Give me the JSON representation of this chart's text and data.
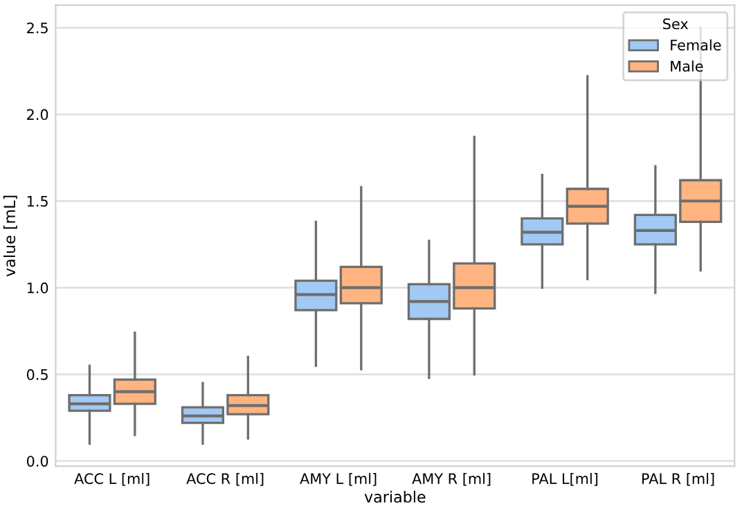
{
  "chart_data": {
    "type": "box",
    "xlabel": "variable",
    "ylabel": "value [mL]",
    "legend_title": "Sex",
    "categories": [
      "ACC L [ml]",
      "ACC R [ml]",
      "AMY L [ml]",
      "AMY R [ml]",
      "PAL L[ml]",
      "PAL R [ml]"
    ],
    "series": [
      {
        "name": "Female",
        "color": "#a1c9f4",
        "boxes": [
          {
            "low": 0.1,
            "q1": 0.29,
            "median": 0.33,
            "q3": 0.38,
            "high": 0.55
          },
          {
            "low": 0.1,
            "q1": 0.22,
            "median": 0.26,
            "q3": 0.31,
            "high": 0.45
          },
          {
            "low": 0.55,
            "q1": 0.87,
            "median": 0.96,
            "q3": 1.04,
            "high": 1.38
          },
          {
            "low": 0.48,
            "q1": 0.82,
            "median": 0.92,
            "q3": 1.02,
            "high": 1.27
          },
          {
            "low": 1.0,
            "q1": 1.25,
            "median": 1.32,
            "q3": 1.4,
            "high": 1.65
          },
          {
            "low": 0.97,
            "q1": 1.25,
            "median": 1.33,
            "q3": 1.42,
            "high": 1.7
          }
        ]
      },
      {
        "name": "Male",
        "color": "#ffb482",
        "boxes": [
          {
            "low": 0.15,
            "q1": 0.33,
            "median": 0.4,
            "q3": 0.47,
            "high": 0.74
          },
          {
            "low": 0.13,
            "q1": 0.27,
            "median": 0.32,
            "q3": 0.38,
            "high": 0.6
          },
          {
            "low": 0.53,
            "q1": 0.91,
            "median": 1.0,
            "q3": 1.12,
            "high": 1.58
          },
          {
            "low": 0.5,
            "q1": 0.88,
            "median": 1.0,
            "q3": 1.14,
            "high": 1.87
          },
          {
            "low": 1.05,
            "q1": 1.37,
            "median": 1.47,
            "q3": 1.57,
            "high": 2.22
          },
          {
            "low": 1.1,
            "q1": 1.38,
            "median": 1.5,
            "q3": 1.62,
            "high": 2.5
          }
        ]
      }
    ],
    "ylim": [
      -0.03,
      2.63
    ],
    "yticks": [
      {
        "value": 0,
        "label": "0.0"
      },
      0.5,
      {
        "value": 1,
        "label": "1.0"
      },
      1.5,
      {
        "value": 2,
        "label": "2.0"
      },
      2.5
    ],
    "grid": "y",
    "legend": "top right"
  }
}
